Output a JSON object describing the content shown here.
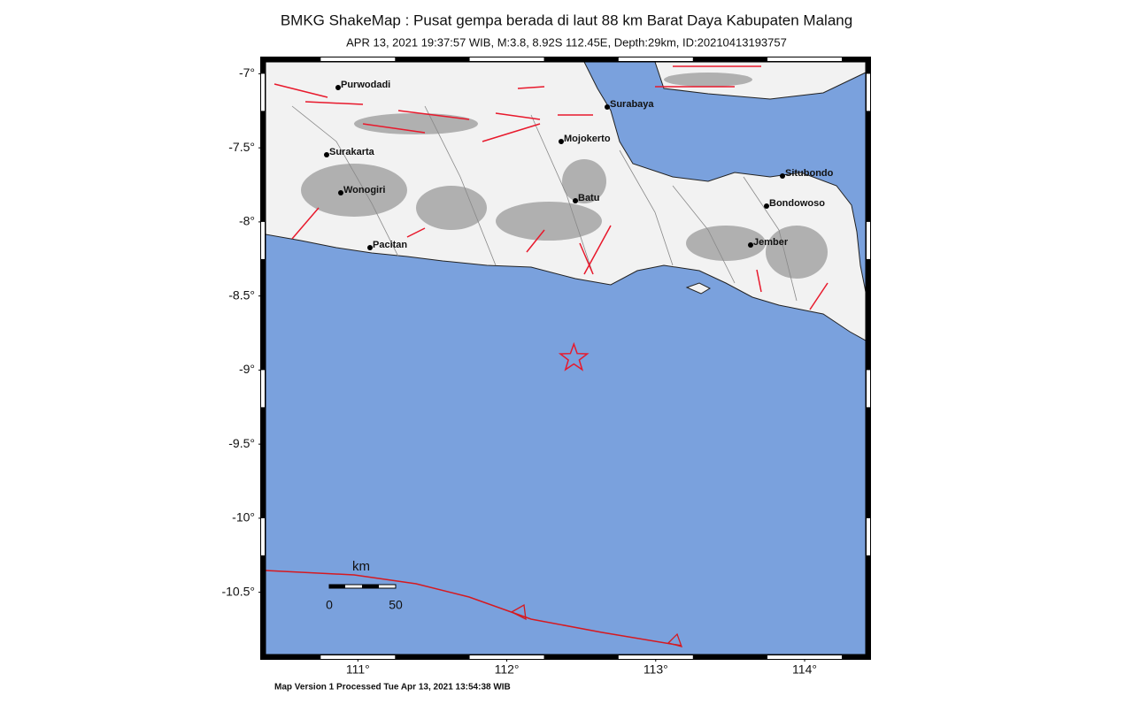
{
  "header": {
    "title": "BMKG ShakeMap : Pusat gempa berada di laut 88 km Barat Daya Kabupaten Malang",
    "subtitle": "APR 13, 2021 19:37:57 WIB, M:3.8, 8.92S 112.45E, Depth:29km, ID:20210413193757"
  },
  "map": {
    "lonlim": [
      110.38,
      114.41
    ],
    "latlim": [
      -10.92,
      -6.92
    ],
    "lonticks": [
      {
        "value": 111,
        "label": "111°"
      },
      {
        "value": 112,
        "label": "112°"
      },
      {
        "value": 113,
        "label": "113°"
      },
      {
        "value": 114,
        "label": "114°"
      }
    ],
    "latticks": [
      {
        "value": -7,
        "label": "-7°"
      },
      {
        "value": -7.5,
        "label": "-7.5°"
      },
      {
        "value": -8,
        "label": "-8°"
      },
      {
        "value": -8.5,
        "label": "-8.5°"
      },
      {
        "value": -9,
        "label": "-9°"
      },
      {
        "value": -9.5,
        "label": "-9.5°"
      },
      {
        "value": -10,
        "label": "-10°"
      },
      {
        "value": -10.5,
        "label": "-10.5°"
      }
    ],
    "epicenter": {
      "lon": 112.45,
      "lat": -8.92,
      "color": "#e8192c"
    },
    "cities": [
      "Purwodadi",
      "Surakarta",
      "Wonogiri",
      "Pacitan",
      "Mojokerto",
      "Surabaya",
      "Batu",
      "Situbondo",
      "Bondowoso",
      "Jember"
    ],
    "scale": {
      "unit": "km",
      "ticks": [
        0,
        50
      ]
    }
  },
  "footer": "Map Version 1 Processed Tue Apr 13, 2021 13:54:38 WIB"
}
